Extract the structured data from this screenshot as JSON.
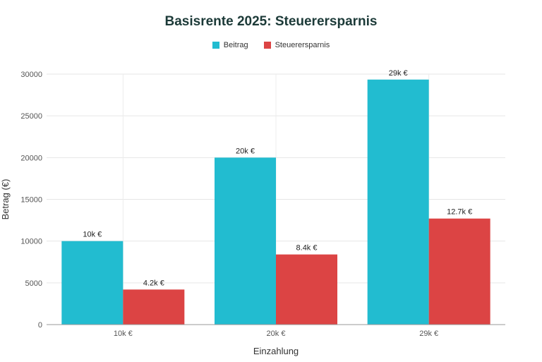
{
  "chart_data": {
    "type": "bar",
    "title": "Basisrente 2025: Steuerersparnis",
    "xlabel": "Einzahlung",
    "ylabel": "Betrag (€)",
    "categories": [
      "10k €",
      "20k €",
      "29k €"
    ],
    "ylim": [
      0,
      30000
    ],
    "yticks": [
      0,
      5000,
      10000,
      15000,
      20000,
      25000,
      30000
    ],
    "grid": true,
    "legend_position": "top-center",
    "series": [
      {
        "name": "Beitrag",
        "color": "#22bcd0",
        "values": [
          10000,
          20000,
          29344
        ],
        "labels": [
          "10k €",
          "20k €",
          "29k €"
        ]
      },
      {
        "name": "Steuerersparnis",
        "color": "#dc4444",
        "values": [
          4200,
          8400,
          12700
        ],
        "labels": [
          "4.2k €",
          "8.4k €",
          "12.7k €"
        ]
      }
    ]
  }
}
